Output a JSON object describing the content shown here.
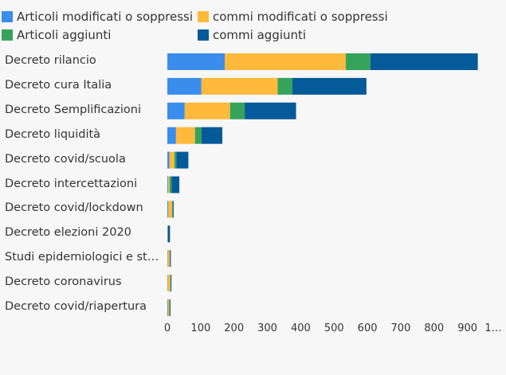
{
  "chart_data": {
    "type": "bar",
    "orientation": "horizontal",
    "stacked": true,
    "categories": [
      "Decreto rilancio",
      "Decreto cura Italia",
      "Decreto Semplificazioni",
      "Decreto liquidità",
      "Decreto covid/scuola",
      "Decreto intercettazioni",
      "Decreto covid/lockdown",
      "Decreto elezioni 2020",
      "Studi epidemiologici e st…",
      "Decreto coronavirus",
      "Decreto covid/riapertura"
    ],
    "series": [
      {
        "name": "Articoli modificati o soppressi",
        "color": "#3b8ded",
        "values": [
          172,
          102,
          52,
          26,
          6,
          3,
          3,
          1,
          1,
          1,
          2
        ]
      },
      {
        "name": "commi modificati o soppressi",
        "color": "#ffb93b",
        "values": [
          363,
          229,
          136,
          57,
          15,
          4,
          12,
          1,
          6,
          8,
          4
        ]
      },
      {
        "name": "Articoli aggiunti",
        "color": "#36a35b",
        "values": [
          74,
          44,
          44,
          19,
          6,
          6,
          1,
          0,
          1,
          1,
          1
        ]
      },
      {
        "name": "commi aggiunti",
        "color": "#055a99",
        "values": [
          322,
          222,
          154,
          63,
          36,
          23,
          3,
          6,
          1,
          1,
          2
        ]
      }
    ],
    "x_ticks": [
      "0",
      "100",
      "200",
      "300",
      "400",
      "500",
      "600",
      "700",
      "800",
      "900",
      "1…"
    ],
    "xlim": [
      0,
      1000
    ],
    "legend_position": "top",
    "grid": false
  }
}
